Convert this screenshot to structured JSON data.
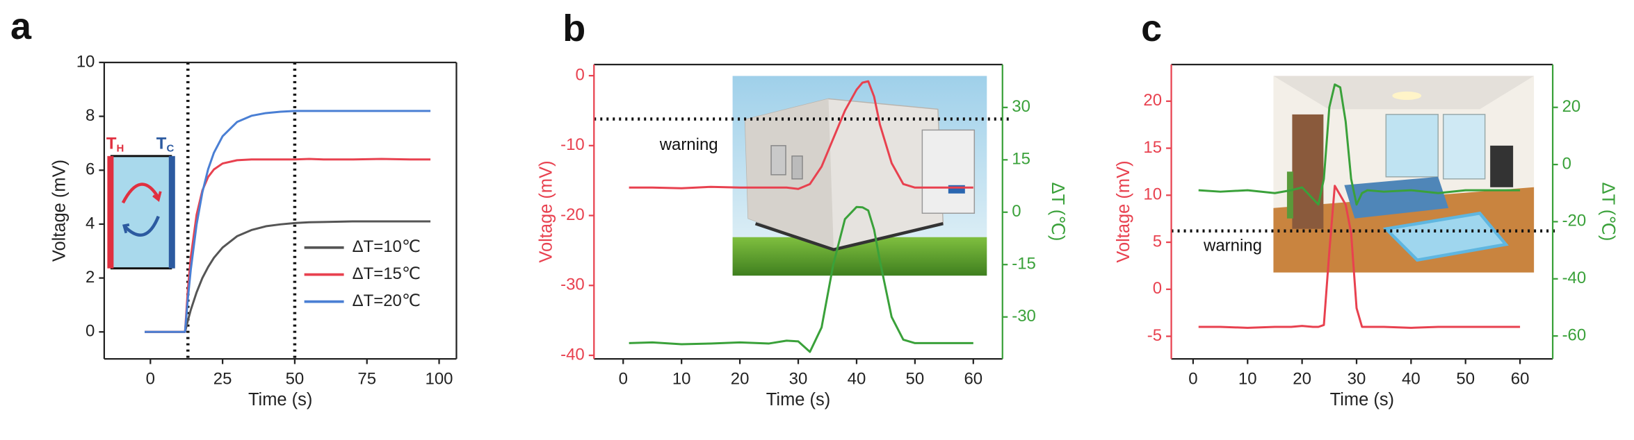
{
  "chart_data": [
    {
      "type": "line",
      "panel_label": "a",
      "xlabel": "Time (s)",
      "ylabel": "Voltage (mV)",
      "xlim": [
        -16,
        106
      ],
      "xticks": [
        0,
        25,
        50,
        75,
        100
      ],
      "ylim": [
        -1,
        10
      ],
      "yticks": [
        0,
        2,
        4,
        6,
        8,
        10
      ],
      "x": [
        -2,
        0,
        5,
        10,
        12,
        13,
        14,
        16,
        18,
        20,
        22,
        25,
        30,
        35,
        40,
        45,
        50,
        55,
        60,
        70,
        80,
        90,
        97
      ],
      "series": [
        {
          "name": "ΔT=10℃",
          "color": "#555555",
          "values": [
            0,
            0,
            0,
            0,
            0,
            0.43,
            0.82,
            1.47,
            2.0,
            2.41,
            2.75,
            3.13,
            3.55,
            3.78,
            3.92,
            3.99,
            4.04,
            4.07,
            4.08,
            4.1,
            4.1,
            4.1,
            4.1
          ]
        },
        {
          "name": "ΔT=15℃",
          "color": "#e8414f",
          "values": [
            0,
            0,
            0,
            0,
            0,
            1.6,
            2.78,
            4.35,
            5.25,
            5.75,
            6.03,
            6.25,
            6.37,
            6.4,
            6.4,
            6.4,
            6.4,
            6.42,
            6.4,
            6.4,
            6.42,
            6.4,
            6.4
          ]
        },
        {
          "name": "ΔT=20℃",
          "color": "#4a7fd4",
          "values": [
            0,
            0,
            0,
            0,
            0,
            1.26,
            2.32,
            3.99,
            5.18,
            6.04,
            6.65,
            7.26,
            7.79,
            8.02,
            8.12,
            8.17,
            8.2,
            8.2,
            8.2,
            8.2,
            8.2,
            8.2,
            8.2
          ]
        }
      ],
      "vlines": [
        13,
        50
      ],
      "inset_labels": [
        {
          "text": "T",
          "sub": "H"
        },
        {
          "text": "T",
          "sub": "C"
        }
      ]
    },
    {
      "type": "line",
      "panel_label": "b",
      "xlabel": "Time (s)",
      "ylabel": "Voltage (mV)",
      "y2label": "ΔT (℃)",
      "xlim": [
        -5,
        65
      ],
      "xticks": [
        0,
        10,
        20,
        30,
        40,
        50,
        60
      ],
      "ylim": [
        -40.5,
        1.6
      ],
      "yticks": [
        -40,
        -30,
        -20,
        -10,
        0
      ],
      "y2lim": [
        -42,
        42.3
      ],
      "y2ticks": [
        -30,
        -15,
        0,
        15,
        30
      ],
      "x": [
        1,
        5,
        10,
        15,
        20,
        25,
        28,
        30,
        32,
        34,
        36,
        38,
        40,
        41,
        42,
        43,
        44,
        46,
        48,
        50,
        55,
        60
      ],
      "series": [
        {
          "color": "#e8414f",
          "values": [
            -16,
            -16,
            -16.1,
            -15.9,
            -16,
            -16,
            -16,
            -16.2,
            -15.5,
            -13,
            -9,
            -5,
            -2,
            -1,
            -0.8,
            -3,
            -7,
            -12.5,
            -15.5,
            -16,
            -16,
            -16
          ]
        },
        {
          "color": "#3aa13a",
          "axis": "y2",
          "values": [
            -37.5,
            -37.3,
            -37.8,
            -37.6,
            -37.3,
            -37.6,
            -36.8,
            -37,
            -40,
            -33,
            -15,
            -2,
            1.5,
            1.4,
            0.5,
            -5,
            -14,
            -30,
            -36.5,
            -37.5,
            -37.5,
            -37.5
          ]
        }
      ],
      "warning": {
        "label": "warning",
        "value": -6.2
      }
    },
    {
      "type": "line",
      "panel_label": "c",
      "xlabel": "Time (s)",
      "ylabel": "Voltage (mV)",
      "y2label": "ΔT (℃)",
      "xlim": [
        -4,
        66
      ],
      "xticks": [
        0,
        10,
        20,
        30,
        40,
        50,
        60
      ],
      "ylim": [
        -7.4,
        23.9
      ],
      "yticks": [
        -5,
        0,
        5,
        10,
        15,
        20
      ],
      "y2lim": [
        -68,
        35
      ],
      "y2ticks": [
        -60,
        -40,
        -20,
        0,
        20
      ],
      "x": [
        1,
        5,
        10,
        15,
        18,
        20,
        22,
        23,
        24,
        25,
        26,
        27,
        28,
        29,
        30,
        31,
        32,
        35,
        40,
        45,
        50,
        55,
        60
      ],
      "series": [
        {
          "color": "#e8414f",
          "values": [
            -4,
            -4,
            -4.1,
            -4,
            -4,
            -3.9,
            -4,
            -4,
            -3.8,
            4,
            11,
            10,
            9,
            6,
            -2,
            -4,
            -4,
            -4,
            -4.1,
            -4,
            -4,
            -4,
            -4
          ]
        },
        {
          "color": "#3aa13a",
          "axis": "y2",
          "values": [
            -9,
            -9.5,
            -9,
            -10,
            -9,
            -8,
            -12,
            -14,
            -5,
            20,
            28,
            27,
            15,
            -5,
            -14,
            -10,
            -9,
            -9.5,
            -9,
            -10,
            -9,
            -9,
            -9
          ]
        }
      ],
      "warning": {
        "label": "warning",
        "value": 6.2
      }
    }
  ]
}
